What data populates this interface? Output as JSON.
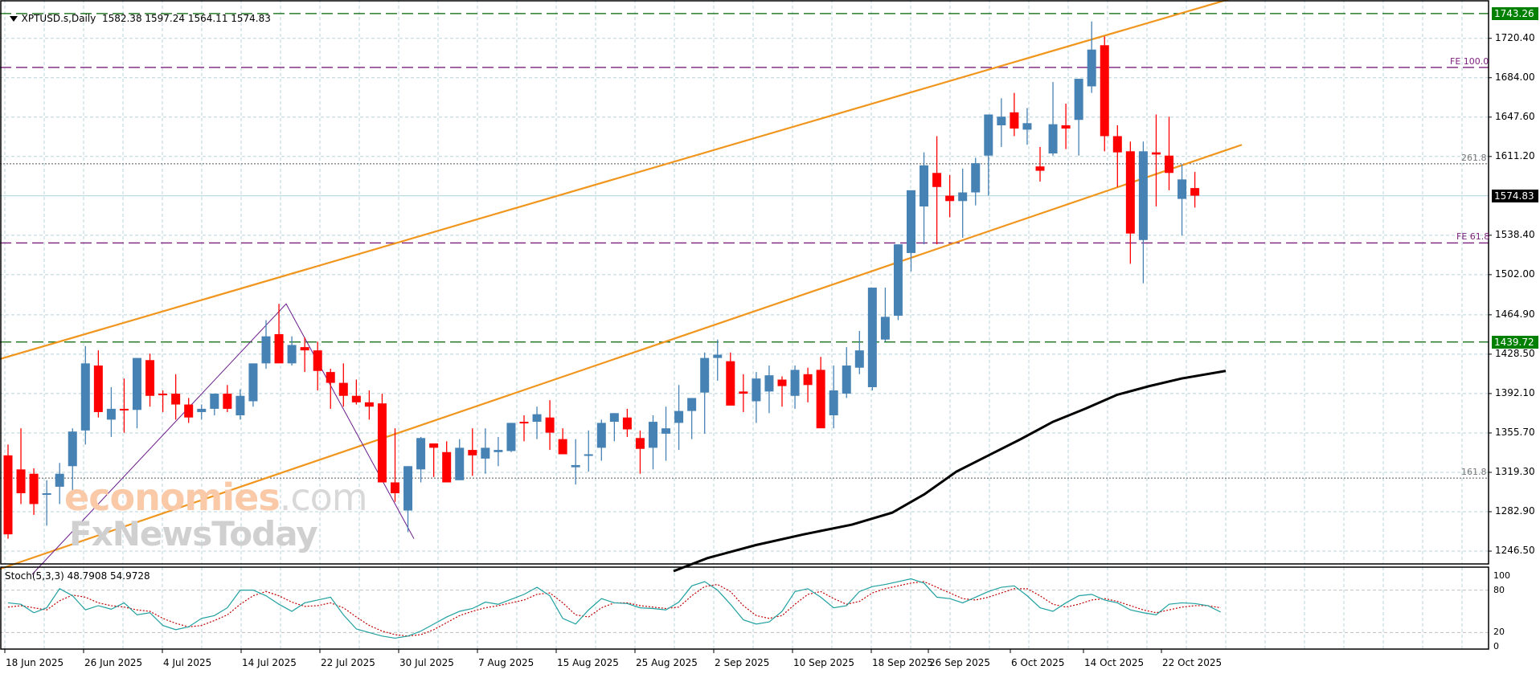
{
  "header": {
    "symbol": "XPTUSD.s,Daily",
    "ohlc_text": "1582.38 1597.24 1564.11 1574.83",
    "open": "1582.38",
    "high": "1597.24",
    "low": "1564.11",
    "close": "1574.83"
  },
  "watermark": {
    "line1_a": "economies",
    "line1_b": ".com",
    "line2": "FxNewsToday"
  },
  "price_axis": {
    "ticks": [
      "1720.40",
      "1684.00",
      "1647.60",
      "1611.20",
      "1574.83",
      "1538.40",
      "1502.00",
      "1464.90",
      "1428.50",
      "1392.10",
      "1355.70",
      "1319.30",
      "1282.90",
      "1246.50"
    ],
    "tick_values": [
      1720.4,
      1684.0,
      1647.6,
      1611.2,
      1538.4,
      1502.0,
      1464.9,
      1428.5,
      1392.1,
      1355.7,
      1319.3,
      1282.9,
      1246.5
    ],
    "tags": [
      {
        "label": "1743.26",
        "value": 1743.26,
        "bg": "#008000"
      },
      {
        "label": "1574.83",
        "value": 1574.83,
        "bg": "#000000"
      },
      {
        "label": "1439.72",
        "value": 1439.72,
        "bg": "#008000"
      }
    ]
  },
  "levels": {
    "resistance": {
      "value": 1743.26,
      "color": "#006400"
    },
    "support": {
      "value": 1439.72,
      "color": "#006400"
    },
    "fe100": {
      "label": "FE 100.0",
      "value": 1693.5,
      "color": "#7b1f7b"
    },
    "fe618": {
      "label": "FE 61.8",
      "value": 1531.3,
      "color": "#7b1f7b"
    },
    "fib2618": {
      "label": "261.8",
      "value": 1604.5,
      "color": "#555555"
    },
    "fib1618": {
      "label": "161.8",
      "value": 1314.0,
      "color": "#555555"
    },
    "last_price": {
      "value": 1574.83,
      "color": "#a9d3dc"
    }
  },
  "stoch_panel": {
    "label": "Stoch(5,3,3) 48.7908 54.9728",
    "ticks": [
      "100",
      "80",
      "20",
      "0"
    ]
  },
  "date_axis": {
    "labels": [
      "18 Jun 2025",
      "26 Jun 2025",
      "4 Jul 2025",
      "14 Jul 2025",
      "22 Jul 2025",
      "30 Jul 2025",
      "7 Aug 2025",
      "15 Aug 2025",
      "25 Aug 2025",
      "2 Sep 2025",
      "10 Sep 2025",
      "18 Sep 2025",
      "26 Sep 2025",
      "6 Oct 2025",
      "14 Oct 2025",
      "22 Oct 2025"
    ]
  },
  "colors": {
    "bull": "#4682b4",
    "bear": "#ff0000",
    "channel": "#f0961e",
    "ma": "#000000",
    "stoch_main": "#20a0a0",
    "stoch_signal": "#c00000",
    "grid": "#b8d4dc"
  },
  "chart_data": {
    "type": "candlestick",
    "title": "XPTUSD.s, Daily",
    "symbol": "XPTUSD.s",
    "timeframe": "Daily",
    "ylim": [
      1230,
      1760
    ],
    "grid": true,
    "x_tick_labels": [
      "18 Jun 2025",
      "26 Jun 2025",
      "4 Jul 2025",
      "14 Jul 2025",
      "22 Jul 2025",
      "30 Jul 2025",
      "7 Aug 2025",
      "15 Aug 2025",
      "25 Aug 2025",
      "2 Sep 2025",
      "10 Sep 2025",
      "18 Sep 2025",
      "26 Sep 2025",
      "6 Oct 2025",
      "14 Oct 2025",
      "22 Oct 2025"
    ],
    "y_tick_labels": [
      "1720.40",
      "1684.00",
      "1647.60",
      "1611.20",
      "1574.83",
      "1538.40",
      "1502.00",
      "1464.90",
      "1428.50",
      "1392.10",
      "1355.70",
      "1319.30",
      "1282.90",
      "1246.50"
    ],
    "last_bar": {
      "open": 1582.38,
      "high": 1597.24,
      "low": 1564.11,
      "close": 1574.83
    },
    "candles": [
      [
        1335,
        1345,
        1258,
        1262
      ],
      [
        1322,
        1360,
        1290,
        1300
      ],
      [
        1318,
        1323,
        1280,
        1290
      ],
      [
        1300,
        1312,
        1270,
        1300
      ],
      [
        1306,
        1328,
        1290,
        1318
      ],
      [
        1325,
        1360,
        1302,
        1357
      ],
      [
        1358,
        1436,
        1345,
        1420
      ],
      [
        1418,
        1432,
        1370,
        1375
      ],
      [
        1368,
        1398,
        1352,
        1378
      ],
      [
        1378,
        1406,
        1356,
        1377
      ],
      [
        1377,
        1412,
        1360,
        1425
      ],
      [
        1423,
        1429,
        1380,
        1390
      ],
      [
        1392,
        1395,
        1375,
        1391
      ],
      [
        1392,
        1410,
        1368,
        1382
      ],
      [
        1382,
        1388,
        1365,
        1370
      ],
      [
        1375,
        1382,
        1368,
        1378
      ],
      [
        1378,
        1392,
        1372,
        1392
      ],
      [
        1392,
        1400,
        1375,
        1378
      ],
      [
        1372,
        1396,
        1368,
        1390
      ],
      [
        1385,
        1419,
        1380,
        1420
      ],
      [
        1420,
        1460,
        1415,
        1445
      ],
      [
        1447,
        1475,
        1425,
        1420
      ],
      [
        1420,
        1445,
        1418,
        1437
      ],
      [
        1435,
        1444,
        1412,
        1432
      ],
      [
        1432,
        1440,
        1395,
        1413
      ],
      [
        1412,
        1415,
        1378,
        1402
      ],
      [
        1402,
        1420,
        1380,
        1390
      ],
      [
        1390,
        1405,
        1382,
        1384
      ],
      [
        1384,
        1395,
        1368,
        1380
      ],
      [
        1383,
        1392,
        1370,
        1310
      ],
      [
        1310,
        1360,
        1292,
        1300
      ],
      [
        1284,
        1325,
        1264,
        1325
      ],
      [
        1322,
        1352,
        1310,
        1351
      ],
      [
        1346,
        1343,
        1315,
        1342
      ],
      [
        1338,
        1348,
        1330,
        1310
      ],
      [
        1312,
        1350,
        1320,
        1342
      ],
      [
        1340,
        1360,
        1316,
        1335
      ],
      [
        1332,
        1360,
        1318,
        1342
      ],
      [
        1338,
        1352,
        1325,
        1340
      ],
      [
        1339,
        1365,
        1338,
        1365
      ],
      [
        1366,
        1372,
        1348,
        1365
      ],
      [
        1366,
        1380,
        1350,
        1373
      ],
      [
        1370,
        1386,
        1340,
        1356
      ],
      [
        1350,
        1360,
        1340,
        1336
      ],
      [
        1324,
        1350,
        1308,
        1326
      ],
      [
        1336,
        1358,
        1320,
        1336
      ],
      [
        1342,
        1368,
        1330,
        1365
      ],
      [
        1366,
        1374,
        1348,
        1374
      ],
      [
        1370,
        1378,
        1352,
        1359
      ],
      [
        1351,
        1358,
        1318,
        1341
      ],
      [
        1342,
        1372,
        1322,
        1366
      ],
      [
        1355,
        1380,
        1330,
        1360
      ],
      [
        1365,
        1400,
        1340,
        1376
      ],
      [
        1376,
        1386,
        1350,
        1388
      ],
      [
        1393,
        1430,
        1355,
        1425
      ],
      [
        1425,
        1442,
        1404,
        1428
      ],
      [
        1422,
        1430,
        1395,
        1381
      ],
      [
        1394,
        1410,
        1375,
        1392
      ],
      [
        1385,
        1412,
        1365,
        1406
      ],
      [
        1394,
        1418,
        1374,
        1409
      ],
      [
        1405,
        1408,
        1380,
        1399
      ],
      [
        1390,
        1418,
        1378,
        1414
      ],
      [
        1410,
        1416,
        1384,
        1400
      ],
      [
        1414,
        1426,
        1380,
        1360
      ],
      [
        1372,
        1418,
        1360,
        1395
      ],
      [
        1392,
        1435,
        1388,
        1418
      ],
      [
        1416,
        1450,
        1410,
        1432
      ],
      [
        1398,
        1478,
        1395,
        1490
      ],
      [
        1442,
        1490,
        1440,
        1463
      ],
      [
        1464,
        1525,
        1460,
        1530
      ],
      [
        1522,
        1540,
        1505,
        1580
      ],
      [
        1565,
        1615,
        1530,
        1603
      ],
      [
        1596,
        1630,
        1530,
        1583
      ],
      [
        1575,
        1594,
        1555,
        1570
      ],
      [
        1570,
        1600,
        1536,
        1578
      ],
      [
        1578,
        1610,
        1566,
        1605
      ],
      [
        1612,
        1640,
        1575,
        1650
      ],
      [
        1640,
        1665,
        1620,
        1648
      ],
      [
        1652,
        1670,
        1630,
        1637
      ],
      [
        1636,
        1656,
        1622,
        1642
      ],
      [
        1602,
        1620,
        1588,
        1598
      ],
      [
        1614,
        1680,
        1612,
        1641
      ],
      [
        1640,
        1660,
        1618,
        1637
      ],
      [
        1645,
        1672,
        1612,
        1683
      ],
      [
        1676,
        1736,
        1670,
        1710
      ],
      [
        1714,
        1722,
        1616,
        1630
      ],
      [
        1630,
        1640,
        1583,
        1615
      ],
      [
        1616,
        1625,
        1512,
        1540
      ],
      [
        1534,
        1625,
        1494,
        1616
      ],
      [
        1615,
        1650,
        1565,
        1613
      ],
      [
        1612,
        1648,
        1580,
        1596
      ],
      [
        1572,
        1604,
        1538,
        1590
      ],
      [
        1582,
        1597,
        1564,
        1575
      ]
    ],
    "series": [
      {
        "name": "SMA (black)",
        "values_approx": "rises from ~1225 (mid-Aug) to ~1397 (late Oct)"
      },
      {
        "name": "Upper channel (orange)",
        "from": [
          0,
          1424
        ],
        "to": [
          1545,
          1760
        ]
      },
      {
        "name": "Lower channel (orange)",
        "from": [
          0,
          1230
        ],
        "to": [
          1545,
          1622
        ]
      }
    ],
    "stochastic": {
      "params": "5,3,3",
      "main_last": 48.7908,
      "signal_last": 54.9728,
      "levels": [
        20,
        80
      ],
      "ylim": [
        0,
        100
      ]
    }
  }
}
